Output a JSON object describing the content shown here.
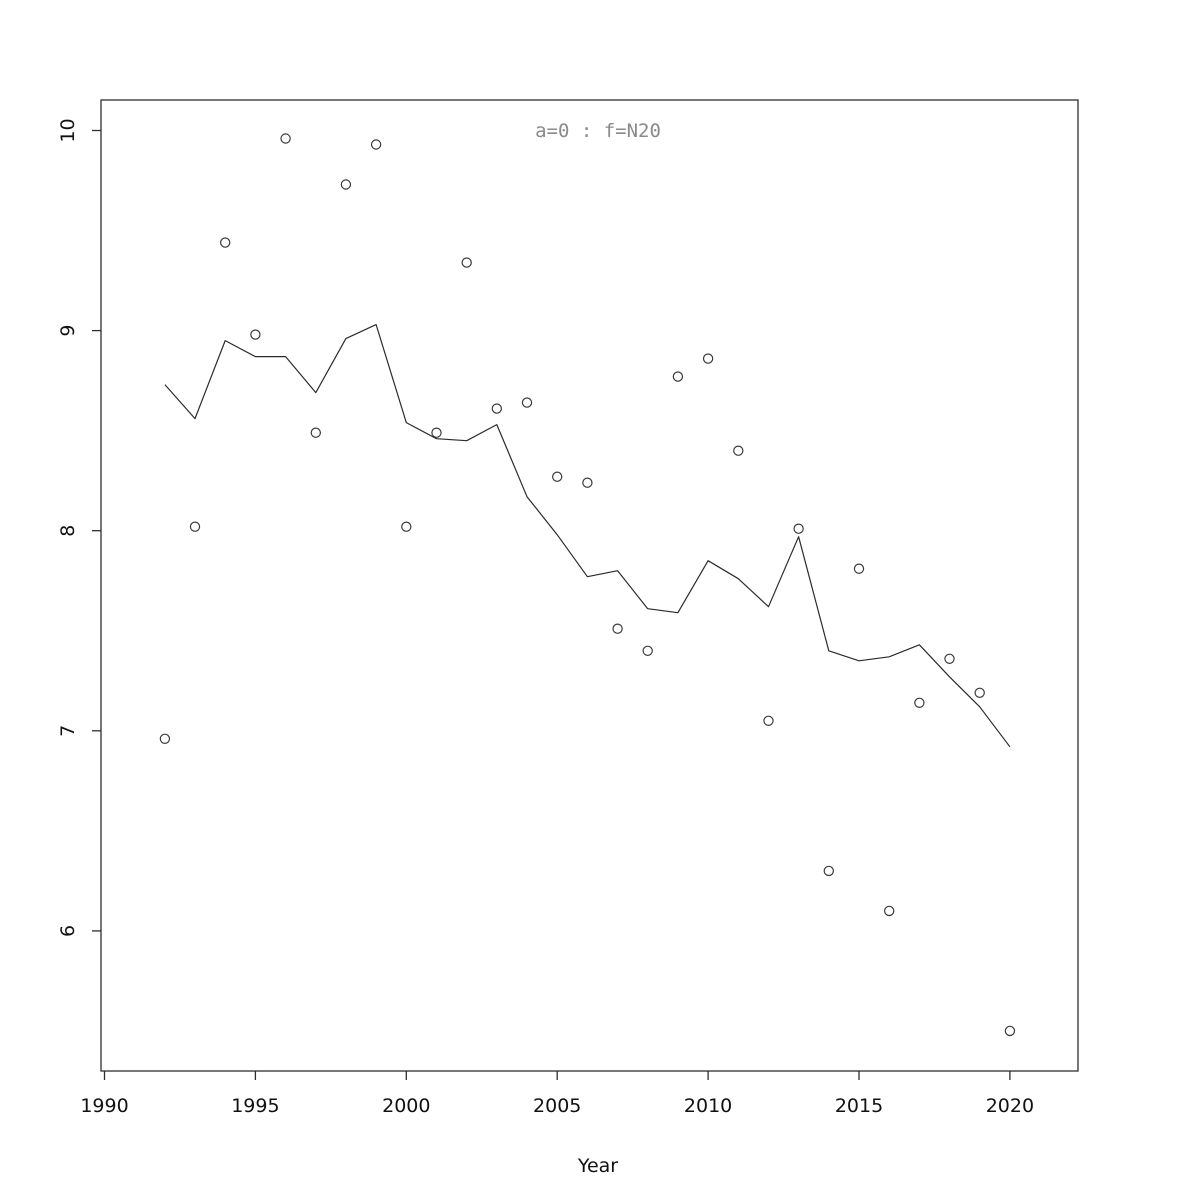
{
  "chart_data": {
    "type": "scatter",
    "title": "a=0  :  f=N20",
    "title_color": "#8a8a8a",
    "xlabel": "Year",
    "ylabel": "",
    "xlim": [
      1989.9,
      2022.2
    ],
    "ylim": [
      5.3,
      10.15
    ],
    "x_ticks": [
      1990,
      1995,
      2000,
      2005,
      2010,
      2015,
      2020
    ],
    "y_ticks": [
      6,
      7,
      8,
      9,
      10
    ],
    "grid": false,
    "legend_position": "none",
    "point_style": "open-circle",
    "series": [
      {
        "name": "observations",
        "type": "scatter",
        "x": [
          1992,
          1993,
          1994,
          1995,
          1996,
          1997,
          1998,
          1999,
          2000,
          2001,
          2002,
          2003,
          2004,
          2005,
          2006,
          2007,
          2008,
          2009,
          2010,
          2011,
          2012,
          2013,
          2014,
          2015,
          2016,
          2017,
          2018,
          2019,
          2020
        ],
        "y": [
          6.96,
          8.02,
          9.44,
          8.98,
          9.96,
          8.49,
          9.73,
          9.93,
          8.02,
          8.49,
          9.34,
          8.61,
          8.64,
          8.27,
          8.24,
          7.51,
          7.4,
          8.77,
          8.86,
          8.4,
          7.05,
          8.01,
          6.3,
          7.81,
          6.1,
          7.14,
          7.36,
          7.19,
          5.5
        ]
      },
      {
        "name": "fit-line",
        "type": "line",
        "x": [
          1992,
          1993,
          1994,
          1995,
          1996,
          1997,
          1998,
          1999,
          2000,
          2001,
          2002,
          2003,
          2004,
          2005,
          2006,
          2007,
          2008,
          2009,
          2010,
          2011,
          2012,
          2013,
          2014,
          2015,
          2016,
          2017,
          2018,
          2019,
          2020
        ],
        "y": [
          8.73,
          8.56,
          8.95,
          8.87,
          8.87,
          8.69,
          8.96,
          9.03,
          8.54,
          8.46,
          8.45,
          8.53,
          8.17,
          7.98,
          7.77,
          7.8,
          7.61,
          7.59,
          7.85,
          7.76,
          7.62,
          7.97,
          7.4,
          7.35,
          7.37,
          7.43,
          7.27,
          7.12,
          6.92
        ]
      }
    ],
    "colors": {
      "background": "#ffffff",
      "axis": "#2e2e2e",
      "line": "#2b2b2b",
      "point": "#3a3a3a",
      "tick_label": "#111111",
      "annotation": "#8a8a8a"
    }
  }
}
